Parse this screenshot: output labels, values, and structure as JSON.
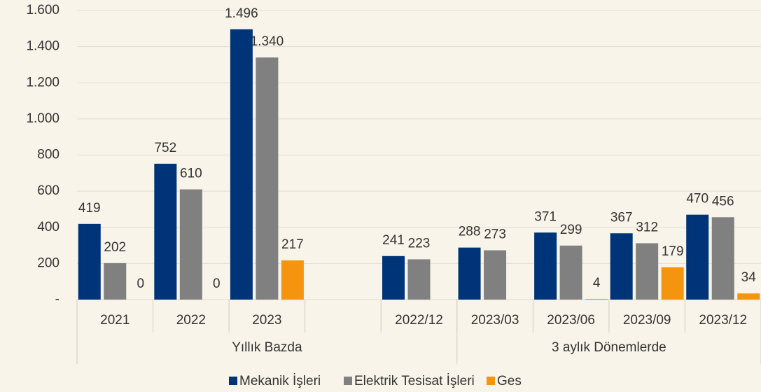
{
  "chart_data": {
    "type": "bar",
    "categories": [
      "2021",
      "2022",
      "2023",
      null,
      "2022/12",
      "2023/03",
      "2023/06",
      "2023/09",
      "2023/12"
    ],
    "groups": [
      {
        "label": "Yıllık Bazda",
        "span": 5
      },
      {
        "label": "3 aylık Dönemlerde",
        "span": 4
      }
    ],
    "series": [
      {
        "name": "Mekanik İşleri",
        "color": "#003478",
        "values": [
          419,
          752,
          1496,
          null,
          241,
          288,
          371,
          367,
          470
        ],
        "value_labels": [
          "419",
          "752",
          "1.496",
          null,
          "241",
          "288",
          "371",
          "367",
          "470"
        ]
      },
      {
        "name": "Elektrik Tesisat İşleri",
        "color": "#808080",
        "values": [
          202,
          610,
          1340,
          null,
          223,
          273,
          299,
          312,
          456
        ],
        "value_labels": [
          "202",
          "610",
          "1.340",
          null,
          "223",
          "273",
          "299",
          "312",
          "456"
        ]
      },
      {
        "name": "Ges",
        "color": "#f5940f",
        "values": [
          0,
          0,
          217,
          null,
          null,
          null,
          4,
          179,
          34
        ],
        "value_labels": [
          "0",
          "0",
          "217",
          null,
          null,
          null,
          "4",
          "179",
          "34"
        ]
      }
    ],
    "ylim": [
      0,
      1600
    ],
    "yticks": [
      {
        "value": 0,
        "label": "-"
      },
      200,
      400,
      600,
      800,
      {
        "value": 1000,
        "label": "1.000"
      },
      {
        "value": 1200,
        "label": "1.200"
      },
      {
        "value": 1400,
        "label": "1.400"
      },
      {
        "value": 1600,
        "label": "1.600"
      }
    ],
    "grid": true,
    "legend": "bottom"
  }
}
